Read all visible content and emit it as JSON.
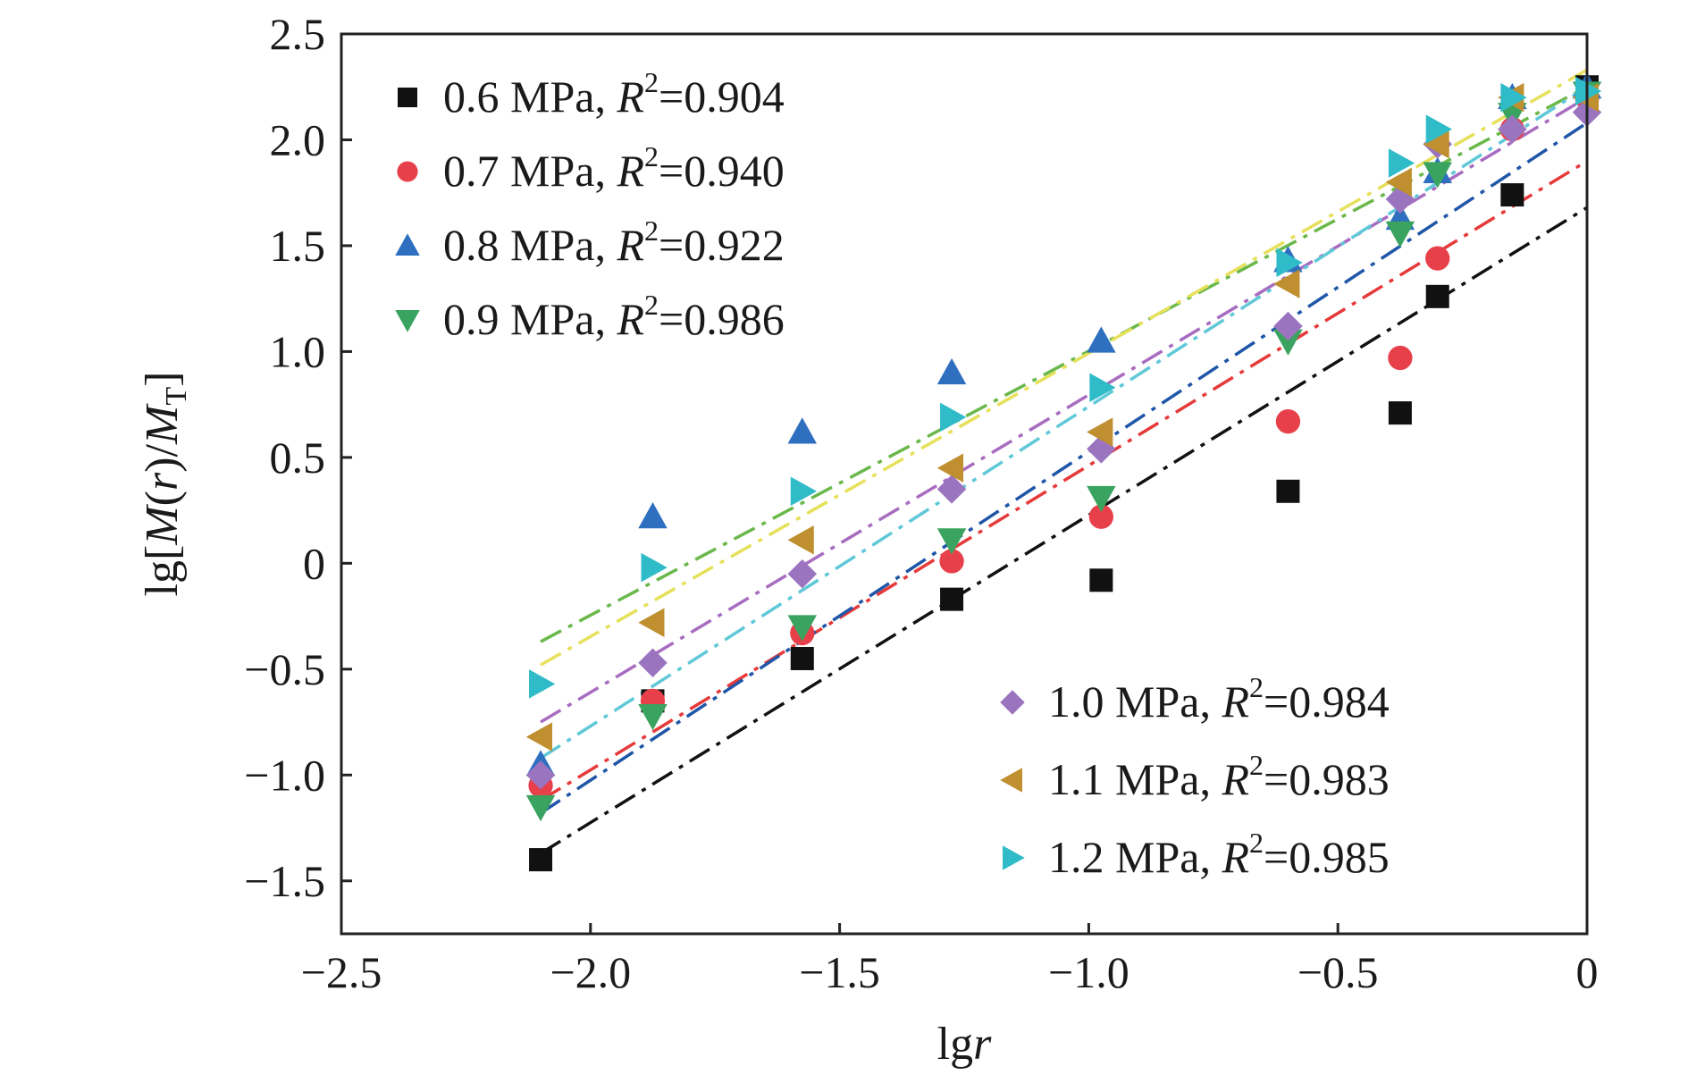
{
  "chart_data": {
    "type": "scatter",
    "xlabel_main": "lg",
    "xlabel_italic": "r",
    "ylabel_parts": [
      "lg[",
      "M",
      "(",
      "r",
      ")/",
      "M",
      "T",
      "]"
    ],
    "xlim": [
      -2.5,
      0
    ],
    "ylim": [
      -1.75,
      2.5
    ],
    "xticks": [
      {
        "value": -2.5,
        "label": "−2.5"
      },
      {
        "value": -2.0,
        "label": "−2.0"
      },
      {
        "value": -1.5,
        "label": "−1.5"
      },
      {
        "value": -1.0,
        "label": "−1.0"
      },
      {
        "value": -0.5,
        "label": "−0.5"
      },
      {
        "value": 0,
        "label": "0"
      }
    ],
    "yticks": [
      {
        "value": 2.5,
        "label": "2.5"
      },
      {
        "value": 2.0,
        "label": "2.0"
      },
      {
        "value": 1.5,
        "label": "1.5"
      },
      {
        "value": 1.0,
        "label": "1.0"
      },
      {
        "value": 0.5,
        "label": "0.5"
      },
      {
        "value": 0,
        "label": "0"
      },
      {
        "value": -0.5,
        "label": "−0.5"
      },
      {
        "value": -1.0,
        "label": "−1.0"
      },
      {
        "value": -1.5,
        "label": "−1.5"
      }
    ],
    "x": [
      -2.1,
      -1.875,
      -1.575,
      -1.275,
      -0.975,
      -0.6,
      -0.375,
      -0.3,
      -0.15,
      0
    ],
    "series": [
      {
        "name": "0.6 MPa",
        "r2_prefix": "R",
        "r2_sup": "2",
        "r2_value": "=0.904",
        "marker": "square",
        "color": "#111111",
        "y": [
          -1.4,
          -0.65,
          -0.45,
          -0.17,
          -0.08,
          0.34,
          0.71,
          1.26,
          1.74,
          2.25
        ],
        "fit": {
          "y_start": -1.37,
          "y_end": 1.68
        }
      },
      {
        "name": "0.7 MPa",
        "r2_prefix": "R",
        "r2_sup": "2",
        "r2_value": "=0.940",
        "marker": "circle",
        "color": "#e8404a",
        "y": [
          -1.05,
          -0.65,
          -0.33,
          0.01,
          0.22,
          0.67,
          0.97,
          1.44,
          2.05,
          2.2
        ],
        "fit": {
          "y_start": -1.12,
          "y_end": 1.9
        }
      },
      {
        "name": "0.8 MPa",
        "r2_prefix": "R",
        "r2_sup": "2",
        "r2_value": "=0.922",
        "marker": "triangle-up",
        "color": "#2e6fc0",
        "y": [
          -0.95,
          0.22,
          0.62,
          0.9,
          1.05,
          1.43,
          1.63,
          1.85,
          2.2,
          2.25
        ],
        "fit": {
          "y_start": -1.18,
          "y_end": 2.08
        }
      },
      {
        "name": "0.9 MPa",
        "r2_prefix": "R",
        "r2_sup": "2",
        "r2_value": "=0.986",
        "marker": "triangle-down",
        "color": "#3aa35f",
        "y": [
          -1.15,
          -0.72,
          -0.3,
          0.11,
          0.31,
          1.05,
          1.56,
          1.84,
          2.12,
          2.22
        ],
        "fit": {
          "y_start": -0.37,
          "y_end": 2.25
        }
      },
      {
        "name": "1.0 MPa",
        "r2_prefix": "R",
        "r2_sup": "2",
        "r2_value": "=0.984",
        "marker": "diamond",
        "color": "#9b74c0",
        "y": [
          -1.0,
          -0.47,
          -0.05,
          0.35,
          0.54,
          1.12,
          1.72,
          1.98,
          2.05,
          2.13
        ],
        "fit": {
          "y_start": -0.75,
          "y_end": 2.2
        }
      },
      {
        "name": "1.1 MPa",
        "r2_prefix": "R",
        "r2_sup": "2",
        "r2_value": "=0.983",
        "marker": "triangle-left",
        "color": "#bf8f30",
        "y": [
          -0.82,
          -0.28,
          0.11,
          0.45,
          0.62,
          1.32,
          1.8,
          1.98,
          2.2,
          2.2
        ],
        "fit": {
          "y_start": -0.48,
          "y_end": 2.33
        }
      },
      {
        "name": "1.2 MPa",
        "r2_prefix": "R",
        "r2_sup": "2",
        "r2_value": "=0.985",
        "marker": "triangle-right",
        "color": "#2fbcc8",
        "y": [
          -0.57,
          -0.02,
          0.34,
          0.69,
          0.83,
          1.42,
          1.89,
          2.05,
          2.2,
          2.23
        ],
        "fit": {
          "y_start": -0.92,
          "y_end": 2.25
        }
      }
    ],
    "fit_colors": [
      "#111111",
      "#e63a3a",
      "#1f56a8",
      "#6ab84a",
      "#a86cc0",
      "#e6e05a",
      "#60c8d8"
    ],
    "legend_left": [
      0,
      1,
      2,
      3
    ],
    "legend_right": [
      4,
      5,
      6
    ],
    "legend_placement": [
      "top-left",
      "bottom-right"
    ]
  }
}
